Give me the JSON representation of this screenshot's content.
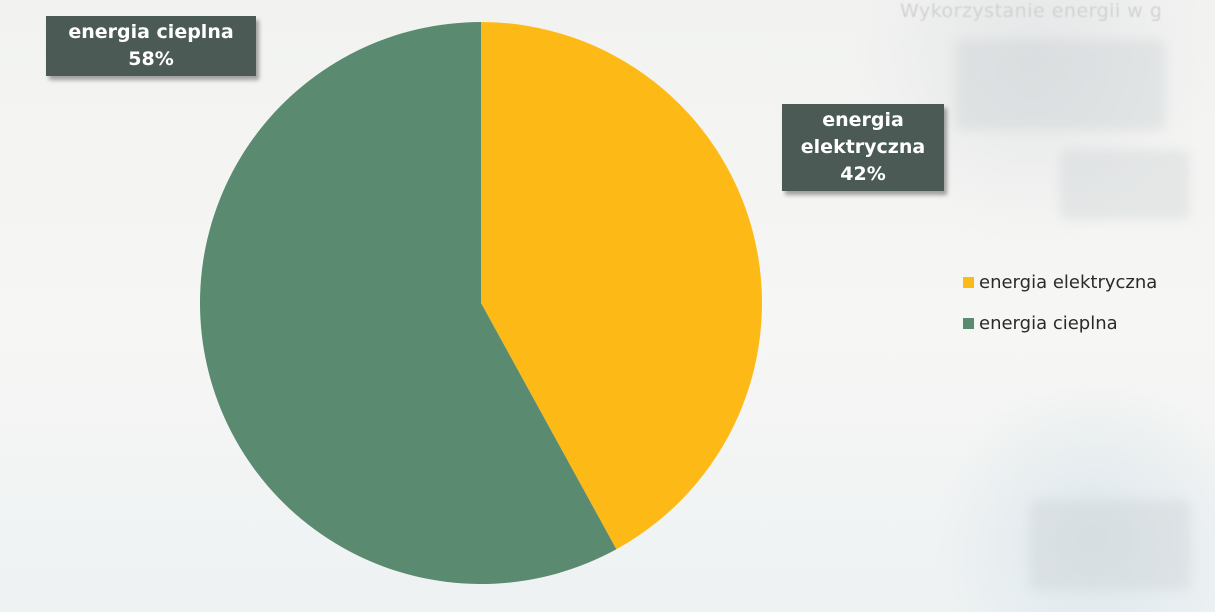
{
  "chart_data": {
    "type": "pie",
    "title": "",
    "categories": [
      "energia elektryczna",
      "energia cieplna"
    ],
    "values": [
      42,
      58
    ],
    "unit": "%",
    "colors": [
      "#fdb916",
      "#5a8a70"
    ],
    "legend_position": "right",
    "data_labels": [
      {
        "category": "energia elektryczna",
        "text": "energia elektryczna",
        "percent": "42%"
      },
      {
        "category": "energia cieplna",
        "text": "energia cieplna",
        "percent": "58%"
      }
    ]
  },
  "callouts": {
    "cieplna": {
      "line1": "energia cieplna",
      "line2": "58%"
    },
    "elektryczna": {
      "line1": "energia",
      "line2": "elektryczna",
      "line3": "42%"
    }
  },
  "legend": {
    "items": [
      {
        "label": "energia elektryczna",
        "color": "#fdb916"
      },
      {
        "label": "energia cieplna",
        "color": "#5a8a70"
      }
    ]
  },
  "background_text": "Wykorzystanie energii w gospodarstwie domowym"
}
